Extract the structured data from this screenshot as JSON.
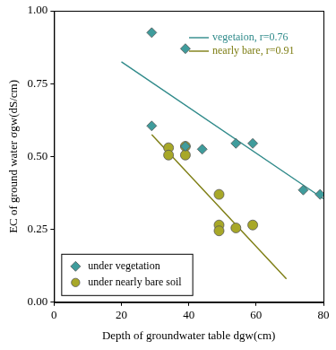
{
  "chart_data": {
    "type": "scatter",
    "xlabel": "Depth of groundwater table dgw(cm)",
    "ylabel": "EC of ground water σgw(dS/cm)",
    "xlim": [
      0,
      80
    ],
    "xticks": [
      0,
      20,
      40,
      60,
      80
    ],
    "ylim": [
      0,
      1
    ],
    "yticks": [
      {
        "value": 0,
        "label": "0.00"
      },
      {
        "value": 0.25,
        "label": "0.25"
      },
      {
        "value": 0.5,
        "label": "0.50"
      },
      {
        "value": 0.75,
        "label": "0.75"
      },
      {
        "value": 1,
        "label": "1.00"
      }
    ],
    "grid": false,
    "legend": "lower left",
    "series": [
      {
        "name": "under vegetation",
        "type": "scatter",
        "marker": "diamond",
        "color": "#3f9c9c",
        "x": [
          29,
          29,
          39,
          39,
          44,
          54,
          59,
          74,
          79
        ],
        "values": [
          0.925,
          0.605,
          0.87,
          0.535,
          0.525,
          0.545,
          0.545,
          0.385,
          0.37
        ]
      },
      {
        "name": "under nearly bare soil",
        "type": "scatter",
        "marker": "circle",
        "color": "#a8a828",
        "x": [
          34,
          34,
          39,
          39,
          49,
          49,
          49,
          54,
          59
        ],
        "values": [
          0.53,
          0.505,
          0.535,
          0.505,
          0.37,
          0.265,
          0.245,
          0.255,
          0.265
        ]
      },
      {
        "name": "vegetaion, r=0.76",
        "type": "line",
        "line_style": "solid",
        "color": "#2f8a8a",
        "x": [
          20,
          80
        ],
        "values": [
          0.825,
          0.355
        ]
      },
      {
        "name": "nearly bare, r=0.91",
        "type": "line",
        "line_style": "solid",
        "color": "#7d7d12",
        "x": [
          29,
          69
        ],
        "values": [
          0.575,
          0.08
        ]
      }
    ]
  }
}
